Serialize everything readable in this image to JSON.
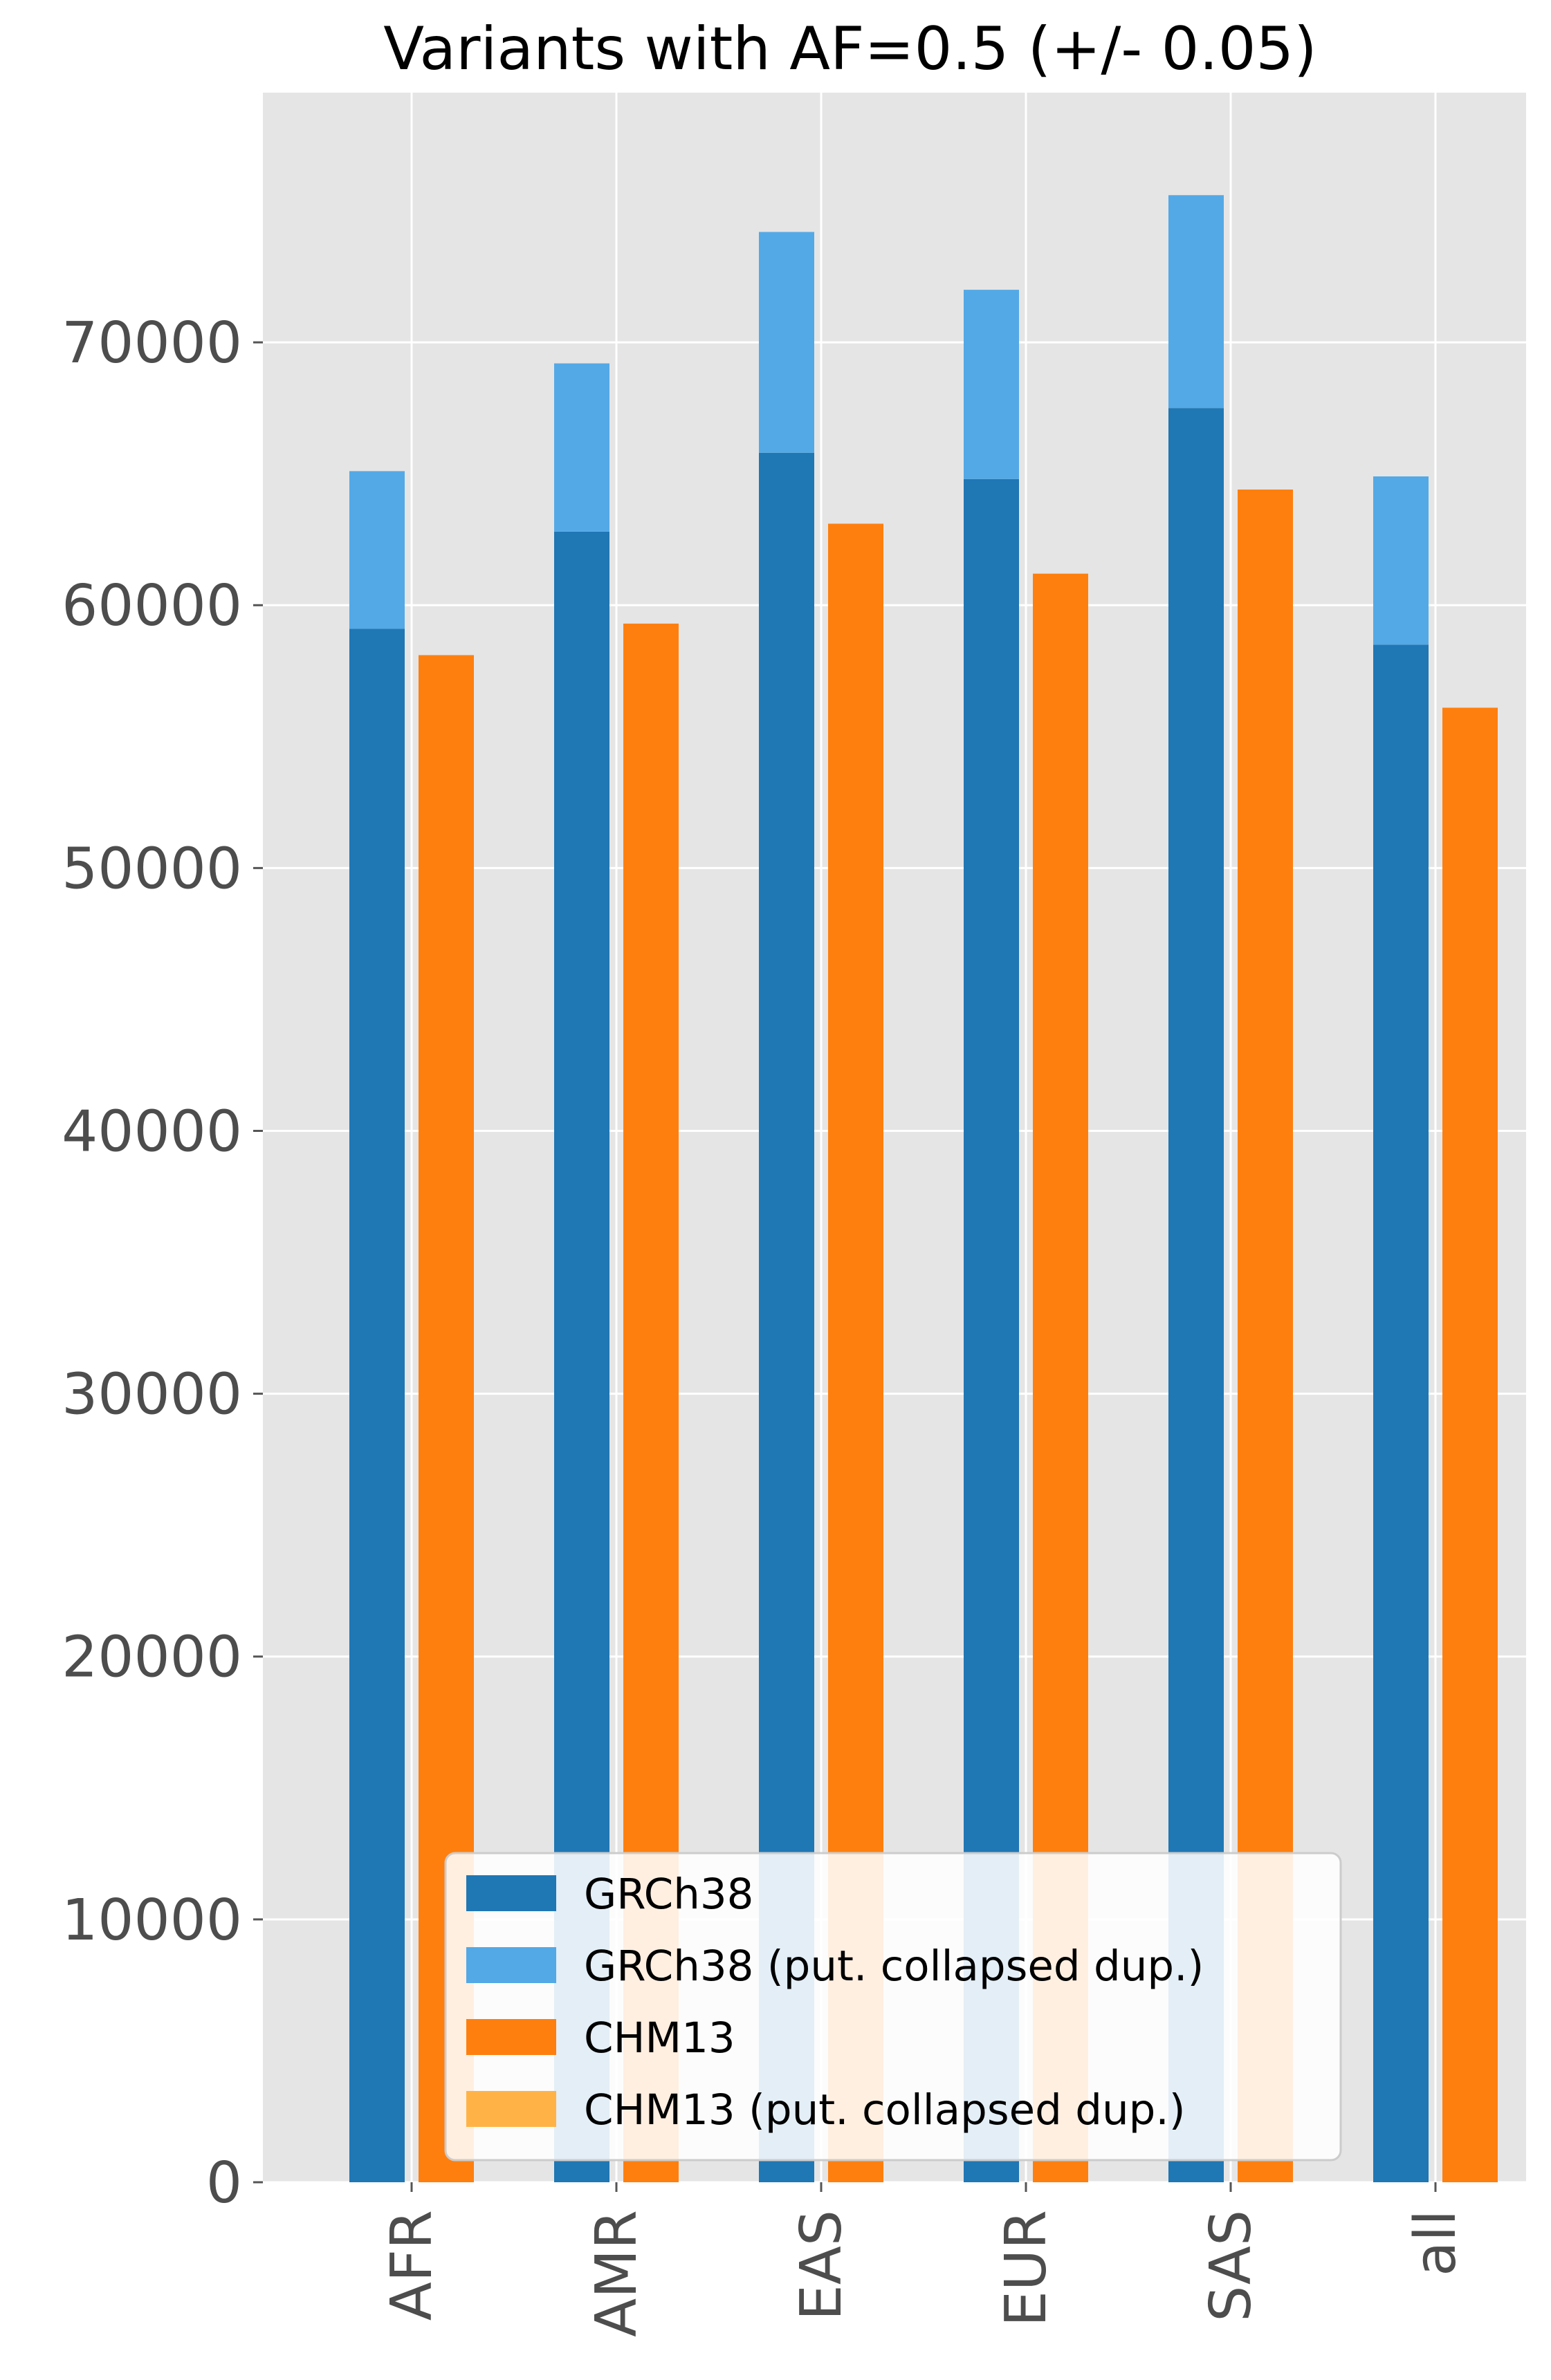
{
  "chart_data": {
    "type": "bar",
    "title": "Variants with AF=0.5 (+/- 0.05)",
    "xlabel": "",
    "ylabel": "",
    "categories": [
      "AFR",
      "AMR",
      "EAS",
      "EUR",
      "SAS",
      "all"
    ],
    "ylim": [
      0,
      79500
    ],
    "yticks": [
      0,
      10000,
      20000,
      30000,
      40000,
      50000,
      60000,
      70000
    ],
    "grid": true,
    "legend_position": "bottom-center",
    "series": [
      {
        "name": "GRCh38",
        "color": "#1f77b4",
        "values": [
          59100,
          62800,
          65800,
          64800,
          67500,
          58500
        ]
      },
      {
        "name": "GRCh38 (put. collapsed dup.)",
        "color": "#53a9e6",
        "values": [
          6000,
          6400,
          8400,
          7200,
          8100,
          6400
        ]
      },
      {
        "name": "CHM13",
        "color": "#ff7f0e",
        "values": [
          58100,
          59300,
          63100,
          61200,
          64400,
          56100
        ]
      },
      {
        "name": "CHM13 (put. collapsed dup.)",
        "color": "#ffb347",
        "values": [
          0,
          0,
          0,
          0,
          0,
          0
        ]
      }
    ]
  }
}
